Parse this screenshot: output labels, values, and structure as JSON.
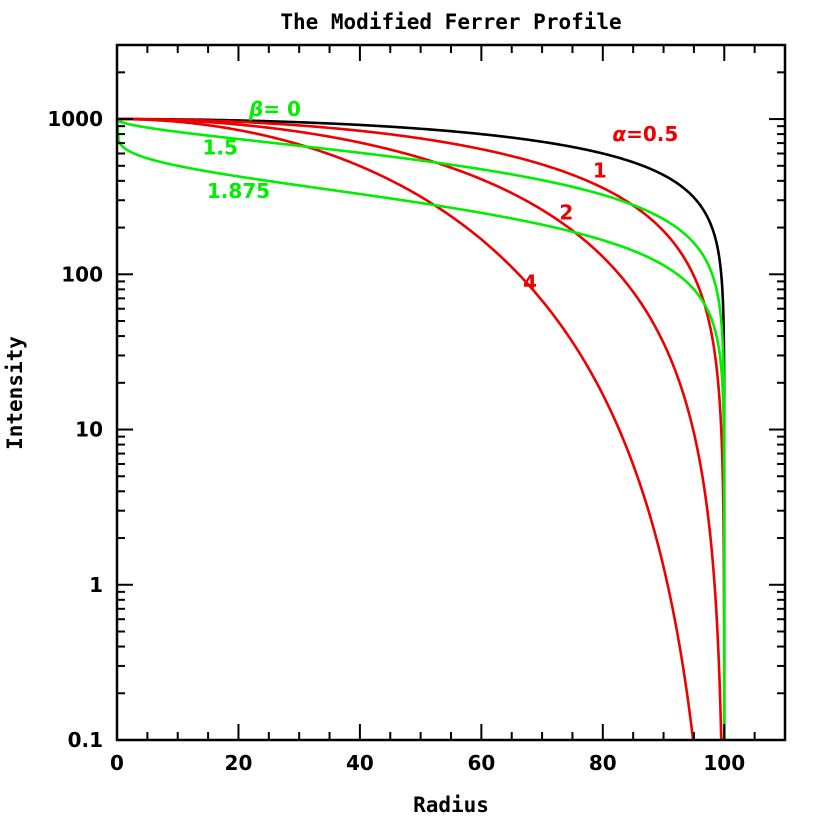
{
  "chart_data": {
    "type": "line",
    "title": "The Modified Ferrer Profile",
    "xlabel": "Radius",
    "ylabel": "Intensity",
    "xlim": [
      0,
      110
    ],
    "ylim": [
      0.1,
      3000
    ],
    "yscale": "log",
    "grid": false,
    "colors": {
      "black": "#000000",
      "red": "#ee0000",
      "green": "#00ee00"
    },
    "x_ticks": [
      {
        "value": 0,
        "label": "0"
      },
      {
        "value": 20,
        "label": "20"
      },
      {
        "value": 40,
        "label": "40"
      },
      {
        "value": 60,
        "label": "60"
      },
      {
        "value": 80,
        "label": "80"
      },
      {
        "value": 100,
        "label": "100"
      }
    ],
    "y_ticks": [
      {
        "value": 0.1,
        "label": "0.1"
      },
      {
        "value": 1,
        "label": "1"
      },
      {
        "value": 10,
        "label": "10"
      },
      {
        "value": 100,
        "label": "100"
      },
      {
        "value": 1000,
        "label": "1000"
      }
    ],
    "series": [
      {
        "color": "black",
        "alpha": 0.5,
        "beta": 0
      },
      {
        "color": "red",
        "alpha": 1,
        "beta": 0
      },
      {
        "color": "red",
        "alpha": 2,
        "beta": 0
      },
      {
        "color": "red",
        "alpha": 4,
        "beta": 0
      },
      {
        "color": "green",
        "alpha": 0.5,
        "beta": 1.5
      },
      {
        "color": "green",
        "alpha": 0.5,
        "beta": 1.875
      }
    ],
    "annotations": [
      {
        "text_prefix": "β",
        "text": "=  0",
        "color": "green",
        "x": 26,
        "y": 1050
      },
      {
        "text": "1.5",
        "color": "green",
        "x": 17,
        "y": 590
      },
      {
        "text": "1.875",
        "color": "green",
        "x": 20,
        "y": 310
      },
      {
        "text_prefix": "α",
        "text": "=0.5",
        "color": "red",
        "x": 87,
        "y": 720
      },
      {
        "text": "1",
        "color": "red",
        "x": 79.5,
        "y": 420
      },
      {
        "text": "2",
        "color": "red",
        "x": 74,
        "y": 225
      },
      {
        "text": "4",
        "color": "red",
        "x": 68,
        "y": 80
      }
    ]
  }
}
